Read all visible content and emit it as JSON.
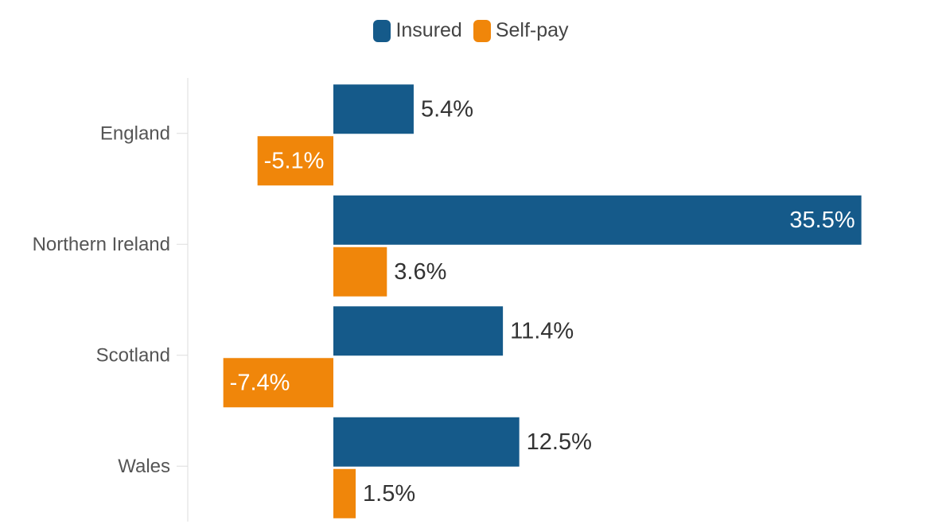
{
  "colors": {
    "insured": "#155a8a",
    "self_pay": "#f0860a",
    "axis": "#dddddd",
    "label_dark": "#333333",
    "label_light": "#ffffff",
    "category_text": "#555555"
  },
  "legend": [
    {
      "name": "Insured",
      "color": "#155a8a"
    },
    {
      "name": "Self-pay",
      "color": "#f0860a"
    }
  ],
  "chart_data": {
    "type": "bar",
    "orientation": "horizontal",
    "categories": [
      "England",
      "Northern Ireland",
      "Scotland",
      "Wales"
    ],
    "series": [
      {
        "name": "Insured",
        "values": [
          5.4,
          35.5,
          11.4,
          12.5
        ],
        "labels": [
          "5.4%",
          "35.5%",
          "11.4%",
          "12.5%"
        ]
      },
      {
        "name": "Self-pay",
        "values": [
          -5.1,
          3.6,
          -7.4,
          1.5
        ],
        "labels": [
          "-5.1%",
          "3.6%",
          "-7.4%",
          "1.5%"
        ]
      }
    ],
    "xlim": [
      -12.6,
      36
    ],
    "legend_position": "top-center",
    "grid": false,
    "title": "",
    "xlabel": "",
    "ylabel": ""
  }
}
